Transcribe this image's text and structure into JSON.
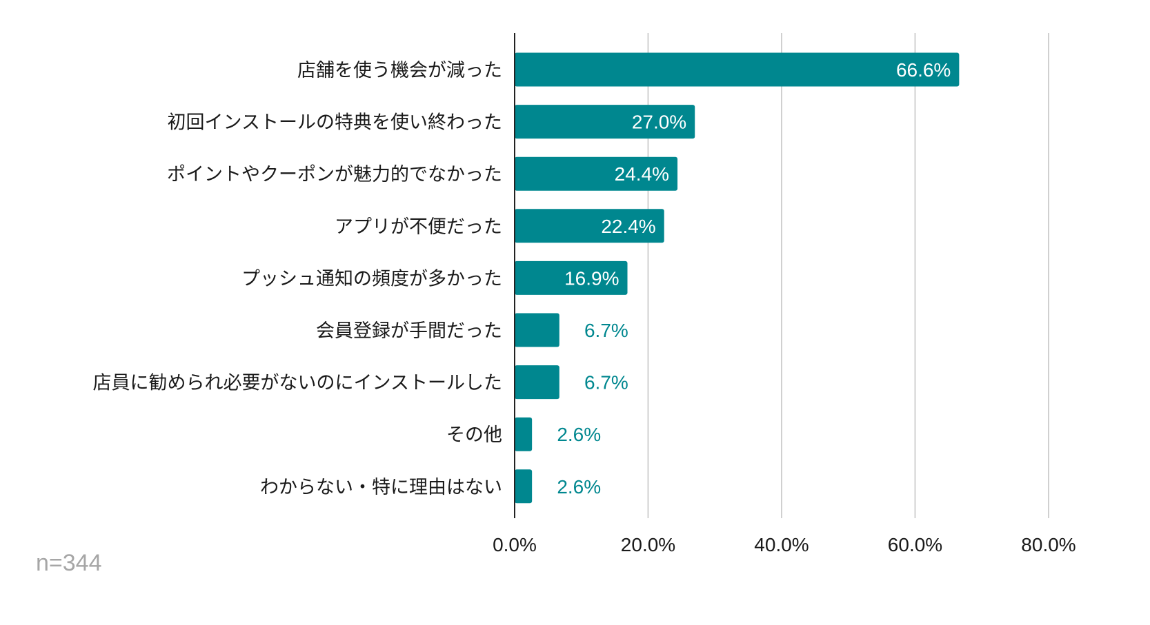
{
  "chart_data": {
    "type": "bar",
    "orientation": "horizontal",
    "categories": [
      "店舗を使う機会が減った",
      "初回インストールの特典を使い終わった",
      "ポイントやクーポンが魅力的でなかった",
      "アプリが不便だった",
      "プッシュ通知の頻度が多かった",
      "会員登録が手間だった",
      "店員に勧められ必要がないのにインストールした",
      "その他",
      "わからない・特に理由はない"
    ],
    "values": [
      66.6,
      27.0,
      24.4,
      22.4,
      16.9,
      6.7,
      6.7,
      2.6,
      2.6
    ],
    "value_labels": [
      "66.6%",
      "27.0%",
      "24.4%",
      "22.4%",
      "16.9%",
      "6.7%",
      "6.7%",
      "2.6%",
      "2.6%"
    ],
    "xlim": [
      0,
      80
    ],
    "xticks": [
      0,
      20,
      40,
      60,
      80
    ],
    "xtick_labels": [
      "0.0%",
      "20.0%",
      "40.0%",
      "60.0%",
      "80.0%"
    ],
    "grid": true,
    "title": "",
    "xlabel": "",
    "ylabel": "",
    "note": "n=344",
    "colors": {
      "bar": "#00878f",
      "label_inside": "#ffffff",
      "label_outside": "#00878f",
      "grid": "#d0d0d0",
      "axis": "#222222",
      "note": "#a6a6a6"
    }
  }
}
